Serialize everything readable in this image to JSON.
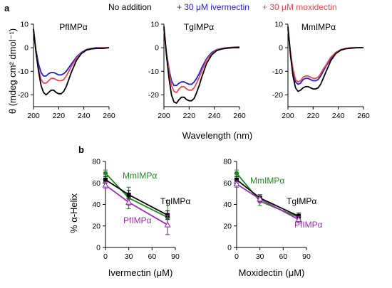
{
  "panel_labels": {
    "a": "a",
    "b": "b"
  },
  "legend": {
    "items": [
      {
        "label": "No addition",
        "color": "#000000"
      },
      {
        "label": "+ 30 μM  ivermectin",
        "color": "#1f1fd6"
      },
      {
        "label": "+ 30 μM  moxidectin",
        "color": "#f0474f"
      }
    ]
  },
  "shared_axes": {
    "cd_ylabel": "θ (mdeg cm² dmol⁻¹)",
    "cd_xlabel": "Wavelength (nm)",
    "helix_ylabel": "% α-Helix"
  },
  "chart_data": [
    {
      "type": "line",
      "title": "PfIMPα",
      "xlim": [
        200,
        260
      ],
      "ylim": [
        -25,
        10
      ],
      "xticks": [
        200,
        220,
        240,
        260
      ],
      "yticks": [
        10,
        0,
        -10,
        -20
      ],
      "series": [
        {
          "name": "No addition",
          "color": "#000000",
          "x": [
            200,
            202,
            204,
            206,
            208,
            210,
            212,
            214,
            216,
            218,
            220,
            222,
            224,
            226,
            228,
            230,
            234,
            238,
            242,
            246,
            250,
            255,
            260
          ],
          "y": [
            8,
            -2,
            -10,
            -16,
            -19,
            -20,
            -19,
            -18,
            -18,
            -19,
            -19.5,
            -19.5,
            -18.5,
            -16.5,
            -13.5,
            -10.5,
            -5.5,
            -2.5,
            -1,
            -0.5,
            -0.3,
            -0.3,
            0
          ]
        },
        {
          "name": "+ 30 μM  ivermectin",
          "color": "#1f1fd6",
          "x": [
            200,
            202,
            204,
            206,
            208,
            210,
            212,
            214,
            216,
            218,
            220,
            222,
            224,
            226,
            228,
            230,
            234,
            238,
            242,
            246,
            250,
            255,
            260
          ],
          "y": [
            7,
            -1,
            -7,
            -10.5,
            -12,
            -12,
            -11,
            -10.5,
            -10.5,
            -11,
            -11.5,
            -11.5,
            -11,
            -10,
            -8.5,
            -7,
            -4,
            -2,
            -0.8,
            -0.3,
            0,
            0,
            0
          ]
        },
        {
          "name": "+ 30 μM  moxidectin",
          "color": "#f0474f",
          "x": [
            200,
            202,
            204,
            206,
            208,
            210,
            212,
            214,
            216,
            218,
            220,
            222,
            224,
            226,
            228,
            230,
            234,
            238,
            242,
            246,
            250,
            255,
            260
          ],
          "y": [
            8,
            -2,
            -9,
            -13.5,
            -15,
            -15,
            -14,
            -13,
            -13,
            -13.5,
            -14,
            -14,
            -13.5,
            -12,
            -10,
            -8,
            -4.5,
            -2.2,
            -1,
            -0.4,
            -0.2,
            0,
            0
          ]
        }
      ]
    },
    {
      "type": "line",
      "title": "TgIMPα",
      "xlim": [
        200,
        260
      ],
      "ylim": [
        -25,
        10
      ],
      "xticks": [
        200,
        220,
        240,
        260
      ],
      "yticks": [
        10,
        0,
        -10,
        -20
      ],
      "series": [
        {
          "name": "No addition",
          "color": "#000000",
          "x": [
            200,
            202,
            204,
            206,
            208,
            210,
            212,
            214,
            216,
            218,
            220,
            222,
            224,
            226,
            228,
            230,
            234,
            238,
            242,
            246,
            250,
            255,
            260
          ],
          "y": [
            9,
            -3,
            -13,
            -20,
            -23,
            -23.5,
            -22,
            -21,
            -21,
            -22,
            -22.5,
            -22.5,
            -21.5,
            -19,
            -16,
            -12.5,
            -6.5,
            -3,
            -1.2,
            -0.5,
            -0.2,
            0,
            0
          ]
        },
        {
          "name": "+ 30 μM  ivermectin",
          "color": "#1f1fd6",
          "x": [
            200,
            202,
            204,
            206,
            208,
            210,
            212,
            214,
            216,
            218,
            220,
            222,
            224,
            226,
            228,
            230,
            234,
            238,
            242,
            246,
            250,
            255,
            260
          ],
          "y": [
            8,
            -2,
            -9,
            -14,
            -16,
            -16,
            -15,
            -14.5,
            -14.5,
            -15,
            -15.5,
            -15.5,
            -14.5,
            -13,
            -11,
            -8.5,
            -4.5,
            -2,
            -0.8,
            -0.3,
            0,
            0.2,
            0.3
          ]
        },
        {
          "name": "+ 30 μM  moxidectin",
          "color": "#f0474f",
          "x": [
            200,
            202,
            204,
            206,
            208,
            210,
            212,
            214,
            216,
            218,
            220,
            222,
            224,
            226,
            228,
            230,
            234,
            238,
            242,
            246,
            250,
            255,
            260
          ],
          "y": [
            8,
            -2,
            -10,
            -16,
            -18.5,
            -19,
            -17.5,
            -16.5,
            -16.5,
            -17.5,
            -18,
            -18,
            -17,
            -15,
            -12.5,
            -10,
            -5,
            -2.5,
            -1,
            -0.3,
            0,
            0,
            0
          ]
        }
      ]
    },
    {
      "type": "line",
      "title": "MmIMPα",
      "xlim": [
        200,
        260
      ],
      "ylim": [
        -25,
        10
      ],
      "xticks": [
        200,
        220,
        240,
        260
      ],
      "yticks": [
        10,
        0,
        -10,
        -20
      ],
      "series": [
        {
          "name": "No addition",
          "color": "#000000",
          "x": [
            200,
            202,
            204,
            206,
            208,
            210,
            212,
            214,
            216,
            218,
            220,
            222,
            224,
            226,
            228,
            230,
            234,
            238,
            242,
            246,
            250,
            255,
            260
          ],
          "y": [
            9,
            -3,
            -12,
            -17,
            -18.5,
            -18,
            -17,
            -16.5,
            -16.5,
            -17,
            -17.5,
            -17.5,
            -17,
            -15.5,
            -13,
            -10.5,
            -5.5,
            -2.5,
            -1,
            -0.4,
            -0.2,
            0,
            0
          ]
        },
        {
          "name": "+ 30 μM  ivermectin",
          "color": "#1f1fd6",
          "x": [
            200,
            202,
            204,
            206,
            208,
            210,
            212,
            214,
            216,
            218,
            220,
            222,
            224,
            226,
            228,
            230,
            234,
            238,
            242,
            246,
            250,
            255,
            260
          ],
          "y": [
            8,
            -2,
            -10,
            -14.5,
            -15.5,
            -15,
            -13.5,
            -13,
            -13,
            -13.5,
            -14,
            -14,
            -13.5,
            -12,
            -10,
            -8,
            -4.5,
            -2,
            -0.8,
            -0.3,
            0,
            0,
            0
          ]
        },
        {
          "name": "+ 30 μM  moxidectin",
          "color": "#f0474f",
          "x": [
            200,
            202,
            204,
            206,
            208,
            210,
            212,
            214,
            216,
            218,
            220,
            222,
            224,
            226,
            228,
            230,
            234,
            238,
            242,
            246,
            250,
            255,
            260
          ],
          "y": [
            8,
            -2,
            -9,
            -13.5,
            -14.5,
            -14,
            -12.5,
            -12,
            -12,
            -12.5,
            -13,
            -13,
            -12.5,
            -11,
            -9,
            -7.5,
            -4,
            -2,
            -0.8,
            -0.3,
            0,
            0,
            0
          ]
        }
      ]
    },
    {
      "type": "line",
      "xlabel": "Ivermectin (μM)",
      "xlim": [
        0,
        90
      ],
      "ylim": [
        0,
        80
      ],
      "xticks": [
        0,
        30,
        60,
        90
      ],
      "yticks": [
        0,
        20,
        40,
        60,
        80
      ],
      "series": [
        {
          "name": "MmIMPα",
          "color": "#1e8a1e",
          "marker": "filled-circle",
          "x": [
            0,
            30,
            80
          ],
          "y": [
            69,
            46,
            28
          ],
          "err": [
            3,
            10,
            16
          ]
        },
        {
          "name": "TgIMPα",
          "color": "#000000",
          "marker": "filled-square",
          "x": [
            0,
            30,
            80
          ],
          "y": [
            63,
            49,
            30
          ],
          "err": [
            3,
            4,
            4
          ]
        },
        {
          "name": "PfIMPα",
          "color": "#9b30b4",
          "marker": "open-triangle",
          "x": [
            0,
            30,
            80
          ],
          "y": [
            58,
            42,
            21
          ],
          "err": [
            3,
            3,
            9
          ]
        }
      ]
    },
    {
      "type": "line",
      "xlabel": "Moxidectin (μM)",
      "xlim": [
        0,
        90
      ],
      "ylim": [
        0,
        80
      ],
      "xticks": [
        0,
        30,
        60,
        90
      ],
      "yticks": [
        0,
        20,
        40,
        60,
        80
      ],
      "series": [
        {
          "name": "MmIMPα",
          "color": "#1e8a1e",
          "marker": "filled-circle",
          "x": [
            0,
            30,
            80
          ],
          "y": [
            69,
            43,
            28
          ],
          "err": [
            3,
            4,
            3
          ]
        },
        {
          "name": "TgIMPα",
          "color": "#000000",
          "marker": "filled-square",
          "x": [
            0,
            30,
            80
          ],
          "y": [
            63,
            46,
            29
          ],
          "err": [
            3,
            3,
            3
          ]
        },
        {
          "name": "PfIMPα",
          "color": "#9b30b4",
          "marker": "open-triangle",
          "x": [
            0,
            30,
            80
          ],
          "y": [
            59,
            45,
            26
          ],
          "err": [
            3,
            3,
            3
          ]
        }
      ]
    }
  ]
}
